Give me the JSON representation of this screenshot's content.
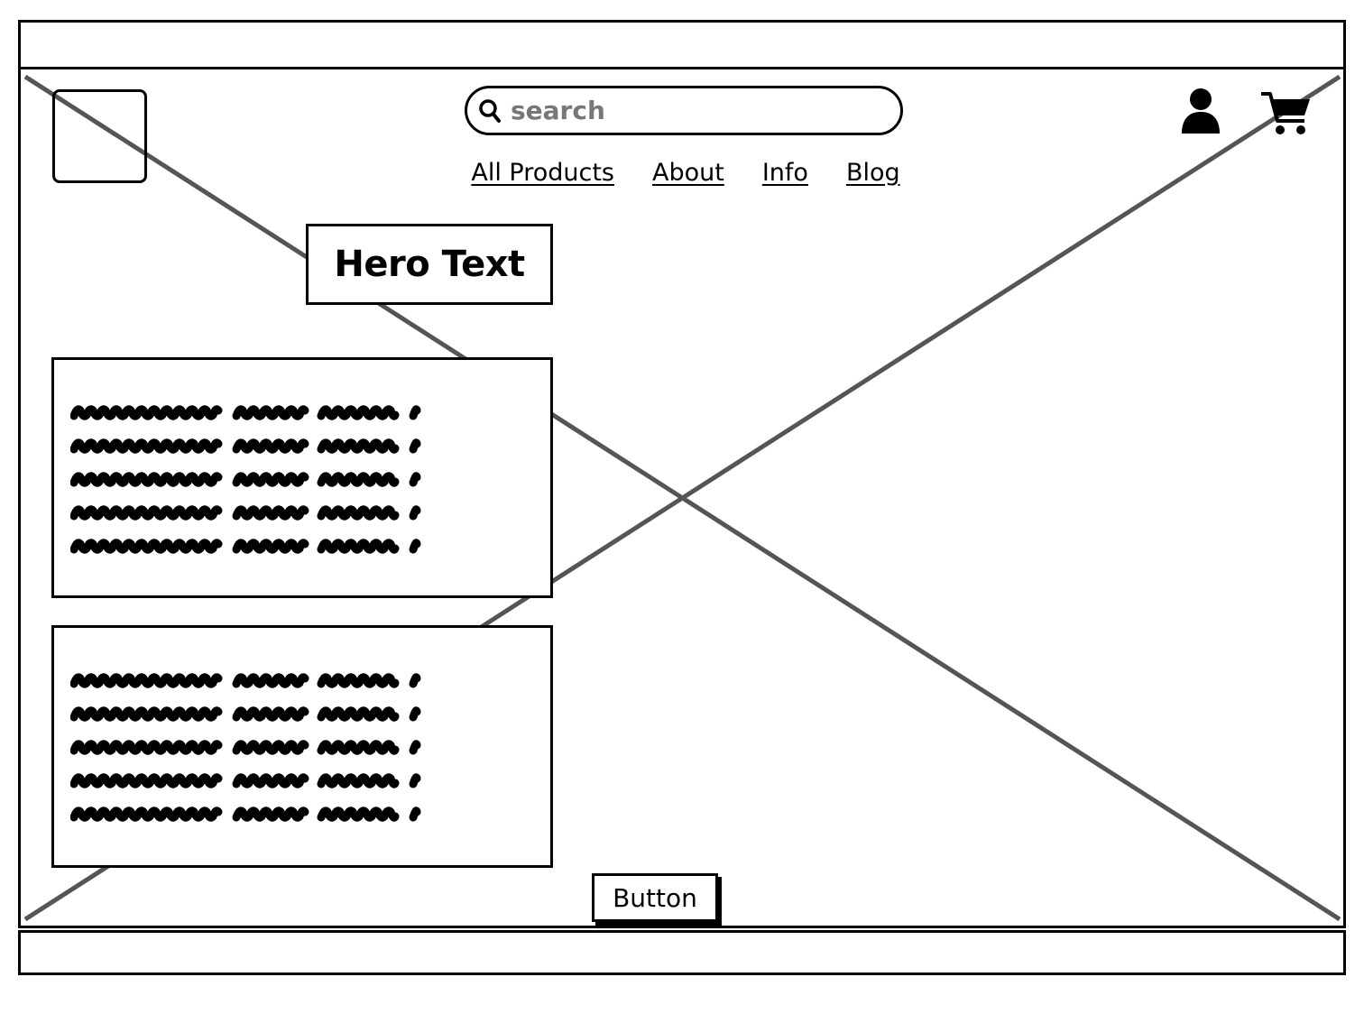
{
  "header": {
    "search": {
      "placeholder": "search"
    },
    "icons": {
      "search": "search-icon",
      "account": "user-icon",
      "cart": "cart-icon"
    }
  },
  "nav": {
    "items": [
      {
        "label": "All Products"
      },
      {
        "label": "About"
      },
      {
        "label": "Info"
      },
      {
        "label": "Blog"
      }
    ]
  },
  "hero": {
    "text": "Hero Text"
  },
  "content": {
    "blocks": [
      {
        "lines": 5,
        "kind": "placeholder scribble text"
      },
      {
        "lines": 5,
        "kind": "placeholder scribble text"
      }
    ]
  },
  "cta": {
    "label": "Button"
  },
  "colors": {
    "stroke": "#000000",
    "placeholder_x": "#555555",
    "background": "#ffffff"
  }
}
